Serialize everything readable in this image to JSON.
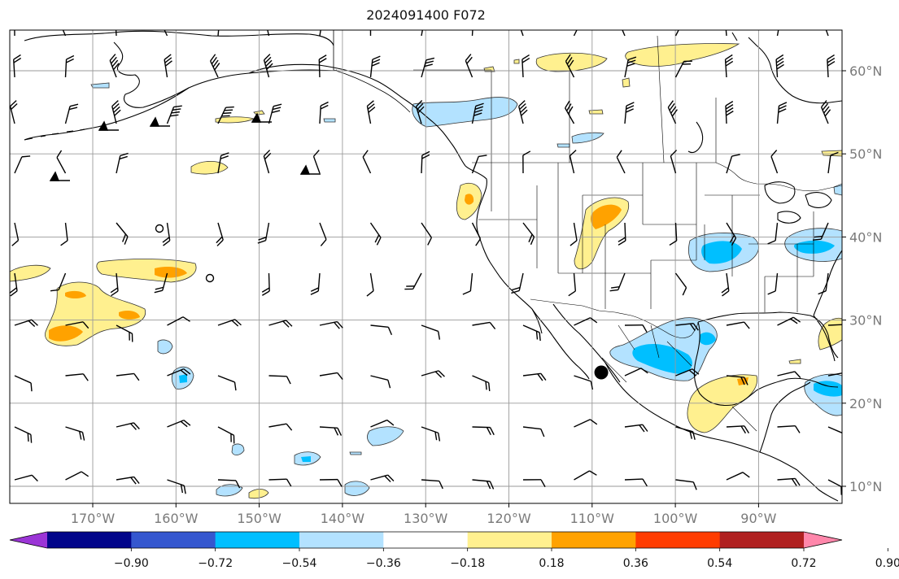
{
  "title": "2024091400 F072",
  "map": {
    "lon_range": [
      -180,
      -80
    ],
    "lat_range": [
      8,
      65
    ],
    "lat_ticks": [
      "10°N",
      "20°N",
      "30°N",
      "40°N",
      "50°N",
      "60°N"
    ],
    "lon_ticks": [
      "170°W",
      "160°W",
      "150°W",
      "140°W",
      "130°W",
      "120°W",
      "110°W",
      "100°W",
      "90°W"
    ],
    "gridlines": true,
    "marker": {
      "lon": -108.9,
      "lat": 23.7,
      "label": ""
    },
    "colors": {
      "land_lines": "#000000",
      "grid": "#9a9a9a",
      "pos1": "#fff08f",
      "pos2": "#ffa200",
      "neg1": "#b3e2ff",
      "neg2": "#00bfff"
    }
  },
  "colorbar": {
    "labels": [
      "−0.90",
      "−0.72",
      "−0.54",
      "−0.36",
      "−0.18",
      "0.18",
      "0.36",
      "0.54",
      "0.72",
      "0.90"
    ],
    "colors": [
      "#9b35d6",
      "#02058a",
      "#3557cf",
      "#00bfff",
      "#b3e2ff",
      "#ffffff",
      "#fff08f",
      "#ffa200",
      "#ff3c00",
      "#b02020",
      "#ff87ab"
    ],
    "extend": "both"
  }
}
